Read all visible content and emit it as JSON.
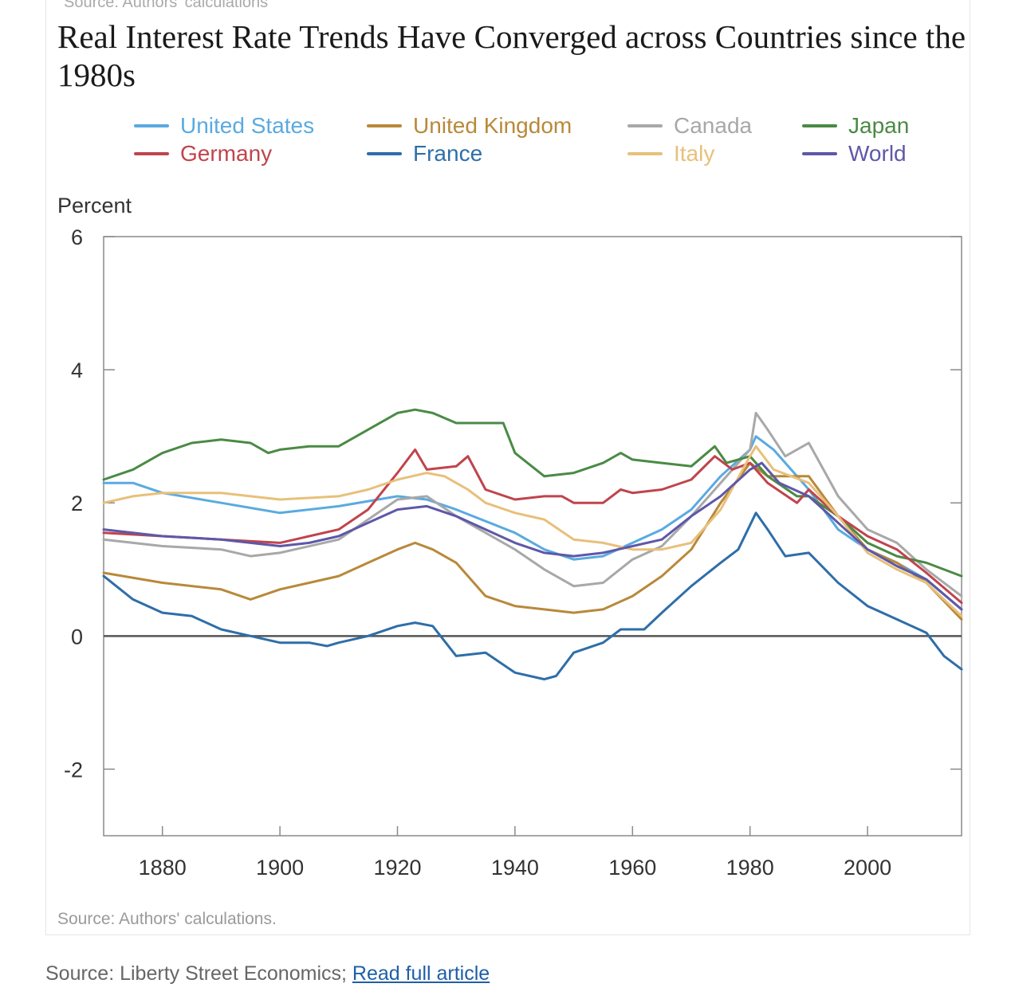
{
  "chart_data": {
    "type": "line",
    "title": "Real Interest Rate Trends Have Converged across Countries since the 1980s",
    "top_source_text": "Source: Authors' calculations",
    "ylabel": "Percent",
    "xlabel": "",
    "xlim": [
      1870,
      2016
    ],
    "ylim": [
      -3,
      6
    ],
    "xticks": [
      1880,
      1900,
      1920,
      1940,
      1960,
      1980,
      2000
    ],
    "yticks": [
      -2,
      0,
      2,
      4,
      6
    ],
    "zero_line": true,
    "legend_position": "top",
    "source": "Source: Authors' calculations.",
    "series": [
      {
        "name": "United States",
        "color": "#5aaae0",
        "points": [
          [
            1870,
            2.3
          ],
          [
            1875,
            2.3
          ],
          [
            1880,
            2.15
          ],
          [
            1890,
            2.0
          ],
          [
            1900,
            1.85
          ],
          [
            1910,
            1.95
          ],
          [
            1920,
            2.1
          ],
          [
            1925,
            2.05
          ],
          [
            1930,
            1.9
          ],
          [
            1940,
            1.55
          ],
          [
            1945,
            1.3
          ],
          [
            1950,
            1.15
          ],
          [
            1955,
            1.2
          ],
          [
            1960,
            1.4
          ],
          [
            1965,
            1.6
          ],
          [
            1970,
            1.9
          ],
          [
            1975,
            2.4
          ],
          [
            1980,
            2.8
          ],
          [
            1981,
            3.0
          ],
          [
            1984,
            2.8
          ],
          [
            1990,
            2.2
          ],
          [
            1995,
            1.6
          ],
          [
            2000,
            1.3
          ],
          [
            2005,
            1.1
          ],
          [
            2010,
            0.85
          ],
          [
            2016,
            0.4
          ]
        ]
      },
      {
        "name": "United Kingdom",
        "color": "#b8893a",
        "points": [
          [
            1870,
            0.95
          ],
          [
            1880,
            0.8
          ],
          [
            1890,
            0.7
          ],
          [
            1895,
            0.55
          ],
          [
            1900,
            0.7
          ],
          [
            1910,
            0.9
          ],
          [
            1915,
            1.1
          ],
          [
            1920,
            1.3
          ],
          [
            1923,
            1.4
          ],
          [
            1926,
            1.3
          ],
          [
            1930,
            1.1
          ],
          [
            1935,
            0.6
          ],
          [
            1940,
            0.45
          ],
          [
            1945,
            0.4
          ],
          [
            1950,
            0.35
          ],
          [
            1955,
            0.4
          ],
          [
            1960,
            0.6
          ],
          [
            1965,
            0.9
          ],
          [
            1970,
            1.3
          ],
          [
            1975,
            2.0
          ],
          [
            1980,
            2.6
          ],
          [
            1983,
            2.4
          ],
          [
            1990,
            2.4
          ],
          [
            1995,
            1.8
          ],
          [
            2000,
            1.3
          ],
          [
            2005,
            1.1
          ],
          [
            2010,
            0.8
          ],
          [
            2016,
            0.25
          ]
        ]
      },
      {
        "name": "Canada",
        "color": "#a8a8a8",
        "points": [
          [
            1870,
            1.45
          ],
          [
            1880,
            1.35
          ],
          [
            1890,
            1.3
          ],
          [
            1895,
            1.2
          ],
          [
            1900,
            1.25
          ],
          [
            1910,
            1.45
          ],
          [
            1920,
            2.05
          ],
          [
            1925,
            2.1
          ],
          [
            1930,
            1.8
          ],
          [
            1940,
            1.3
          ],
          [
            1945,
            1.0
          ],
          [
            1950,
            0.75
          ],
          [
            1955,
            0.8
          ],
          [
            1960,
            1.15
          ],
          [
            1965,
            1.35
          ],
          [
            1970,
            1.8
          ],
          [
            1975,
            2.3
          ],
          [
            1980,
            2.8
          ],
          [
            1981,
            3.35
          ],
          [
            1983,
            3.1
          ],
          [
            1986,
            2.7
          ],
          [
            1990,
            2.9
          ],
          [
            1995,
            2.1
          ],
          [
            2000,
            1.6
          ],
          [
            2005,
            1.4
          ],
          [
            2010,
            1.0
          ],
          [
            2016,
            0.6
          ]
        ]
      },
      {
        "name": "Japan",
        "color": "#4a8a44",
        "points": [
          [
            1870,
            2.35
          ],
          [
            1875,
            2.5
          ],
          [
            1880,
            2.75
          ],
          [
            1885,
            2.9
          ],
          [
            1890,
            2.95
          ],
          [
            1895,
            2.9
          ],
          [
            1898,
            2.75
          ],
          [
            1900,
            2.8
          ],
          [
            1905,
            2.85
          ],
          [
            1910,
            2.85
          ],
          [
            1915,
            3.1
          ],
          [
            1920,
            3.35
          ],
          [
            1923,
            3.4
          ],
          [
            1926,
            3.35
          ],
          [
            1930,
            3.2
          ],
          [
            1935,
            3.2
          ],
          [
            1938,
            3.2
          ],
          [
            1940,
            2.75
          ],
          [
            1945,
            2.4
          ],
          [
            1950,
            2.45
          ],
          [
            1955,
            2.6
          ],
          [
            1958,
            2.75
          ],
          [
            1960,
            2.65
          ],
          [
            1965,
            2.6
          ],
          [
            1970,
            2.55
          ],
          [
            1974,
            2.85
          ],
          [
            1976,
            2.6
          ],
          [
            1980,
            2.7
          ],
          [
            1983,
            2.4
          ],
          [
            1988,
            2.1
          ],
          [
            1990,
            2.1
          ],
          [
            1995,
            1.8
          ],
          [
            2000,
            1.4
          ],
          [
            2005,
            1.2
          ],
          [
            2010,
            1.1
          ],
          [
            2016,
            0.9
          ]
        ]
      },
      {
        "name": "Germany",
        "color": "#c0444d",
        "points": [
          [
            1870,
            1.55
          ],
          [
            1880,
            1.5
          ],
          [
            1890,
            1.45
          ],
          [
            1900,
            1.4
          ],
          [
            1910,
            1.6
          ],
          [
            1915,
            1.9
          ],
          [
            1920,
            2.45
          ],
          [
            1923,
            2.8
          ],
          [
            1925,
            2.5
          ],
          [
            1930,
            2.55
          ],
          [
            1932,
            2.7
          ],
          [
            1935,
            2.2
          ],
          [
            1940,
            2.05
          ],
          [
            1945,
            2.1
          ],
          [
            1948,
            2.1
          ],
          [
            1950,
            2.0
          ],
          [
            1955,
            2.0
          ],
          [
            1958,
            2.2
          ],
          [
            1960,
            2.15
          ],
          [
            1965,
            2.2
          ],
          [
            1970,
            2.35
          ],
          [
            1974,
            2.7
          ],
          [
            1977,
            2.5
          ],
          [
            1980,
            2.6
          ],
          [
            1983,
            2.3
          ],
          [
            1988,
            2.0
          ],
          [
            1990,
            2.2
          ],
          [
            1995,
            1.8
          ],
          [
            2000,
            1.5
          ],
          [
            2005,
            1.3
          ],
          [
            2010,
            0.95
          ],
          [
            2016,
            0.5
          ]
        ]
      },
      {
        "name": "France",
        "color": "#2e6ea8",
        "points": [
          [
            1870,
            0.9
          ],
          [
            1875,
            0.55
          ],
          [
            1880,
            0.35
          ],
          [
            1885,
            0.3
          ],
          [
            1890,
            0.1
          ],
          [
            1895,
            0.0
          ],
          [
            1900,
            -0.1
          ],
          [
            1905,
            -0.1
          ],
          [
            1908,
            -0.15
          ],
          [
            1910,
            -0.1
          ],
          [
            1915,
            0.0
          ],
          [
            1920,
            0.15
          ],
          [
            1923,
            0.2
          ],
          [
            1926,
            0.15
          ],
          [
            1930,
            -0.3
          ],
          [
            1935,
            -0.25
          ],
          [
            1940,
            -0.55
          ],
          [
            1945,
            -0.65
          ],
          [
            1947,
            -0.6
          ],
          [
            1950,
            -0.25
          ],
          [
            1955,
            -0.1
          ],
          [
            1958,
            0.1
          ],
          [
            1962,
            0.1
          ],
          [
            1965,
            0.35
          ],
          [
            1970,
            0.75
          ],
          [
            1975,
            1.1
          ],
          [
            1978,
            1.3
          ],
          [
            1981,
            1.85
          ],
          [
            1983,
            1.6
          ],
          [
            1986,
            1.2
          ],
          [
            1990,
            1.25
          ],
          [
            1995,
            0.8
          ],
          [
            2000,
            0.45
          ],
          [
            2005,
            0.25
          ],
          [
            2010,
            0.05
          ],
          [
            2013,
            -0.3
          ],
          [
            2016,
            -0.5
          ]
        ]
      },
      {
        "name": "Italy",
        "color": "#e8c07a",
        "points": [
          [
            1870,
            2.0
          ],
          [
            1875,
            2.1
          ],
          [
            1880,
            2.15
          ],
          [
            1890,
            2.15
          ],
          [
            1900,
            2.05
          ],
          [
            1910,
            2.1
          ],
          [
            1915,
            2.2
          ],
          [
            1920,
            2.35
          ],
          [
            1925,
            2.45
          ],
          [
            1928,
            2.4
          ],
          [
            1932,
            2.2
          ],
          [
            1935,
            2.0
          ],
          [
            1940,
            1.85
          ],
          [
            1945,
            1.75
          ],
          [
            1950,
            1.45
          ],
          [
            1955,
            1.4
          ],
          [
            1960,
            1.3
          ],
          [
            1965,
            1.3
          ],
          [
            1970,
            1.4
          ],
          [
            1975,
            1.9
          ],
          [
            1980,
            2.7
          ],
          [
            1981,
            2.85
          ],
          [
            1984,
            2.5
          ],
          [
            1990,
            2.3
          ],
          [
            1995,
            1.8
          ],
          [
            2000,
            1.25
          ],
          [
            2005,
            1.0
          ],
          [
            2010,
            0.8
          ],
          [
            2016,
            0.3
          ]
        ]
      },
      {
        "name": "World",
        "color": "#5e58a8",
        "points": [
          [
            1870,
            1.6
          ],
          [
            1880,
            1.5
          ],
          [
            1890,
            1.45
          ],
          [
            1900,
            1.35
          ],
          [
            1905,
            1.4
          ],
          [
            1910,
            1.5
          ],
          [
            1915,
            1.7
          ],
          [
            1920,
            1.9
          ],
          [
            1925,
            1.95
          ],
          [
            1930,
            1.8
          ],
          [
            1935,
            1.6
          ],
          [
            1940,
            1.4
          ],
          [
            1945,
            1.25
          ],
          [
            1950,
            1.2
          ],
          [
            1955,
            1.25
          ],
          [
            1960,
            1.35
          ],
          [
            1965,
            1.45
          ],
          [
            1970,
            1.8
          ],
          [
            1975,
            2.1
          ],
          [
            1980,
            2.5
          ],
          [
            1982,
            2.6
          ],
          [
            1985,
            2.3
          ],
          [
            1990,
            2.1
          ],
          [
            1995,
            1.7
          ],
          [
            2000,
            1.3
          ],
          [
            2005,
            1.05
          ],
          [
            2010,
            0.85
          ],
          [
            2016,
            0.4
          ]
        ]
      }
    ]
  },
  "footer": {
    "source_label": "Source: Liberty Street Economics; ",
    "link_text": "Read full article"
  }
}
